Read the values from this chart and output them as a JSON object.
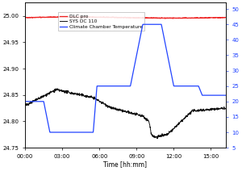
{
  "title": "",
  "xlabel": "Time [hh:mm]",
  "ylim_left": [
    24.75,
    25.025
  ],
  "ylim_right": [
    5,
    52
  ],
  "yticks_left": [
    24.75,
    24.8,
    24.85,
    24.9,
    24.95,
    25.0
  ],
  "yticks_right": [
    5,
    10,
    15,
    20,
    25,
    30,
    35,
    40,
    45,
    50
  ],
  "xticks_hours": [
    0,
    3,
    6,
    9,
    12,
    15
  ],
  "xlim_hours": [
    0,
    16.2
  ],
  "color_dlc": "#ee2222",
  "color_sys": "#111111",
  "color_climate": "#2244ff",
  "legend_labels": [
    "DLC pro",
    "SYS DC 110",
    "Climate Chamber Temperature"
  ],
  "bg_color": "#ffffff",
  "climate_keypoints": [
    [
      0.0,
      20
    ],
    [
      1.5,
      20
    ],
    [
      2.0,
      10
    ],
    [
      5.5,
      10
    ],
    [
      5.8,
      25
    ],
    [
      8.5,
      25
    ],
    [
      9.5,
      45
    ],
    [
      11.0,
      45
    ],
    [
      12.0,
      25
    ],
    [
      14.0,
      25
    ],
    [
      14.3,
      22
    ],
    [
      16.2,
      22
    ]
  ],
  "dlc_base": 24.997,
  "dlc_amplitude": 0.001,
  "sys_keypoints": [
    [
      0.0,
      24.83
    ],
    [
      2.5,
      24.86
    ],
    [
      5.5,
      24.845
    ],
    [
      7.0,
      24.825
    ],
    [
      9.5,
      24.81
    ],
    [
      10.0,
      24.8
    ],
    [
      10.2,
      24.775
    ],
    [
      10.5,
      24.77
    ],
    [
      11.5,
      24.775
    ],
    [
      13.5,
      24.82
    ],
    [
      16.2,
      24.825
    ]
  ]
}
